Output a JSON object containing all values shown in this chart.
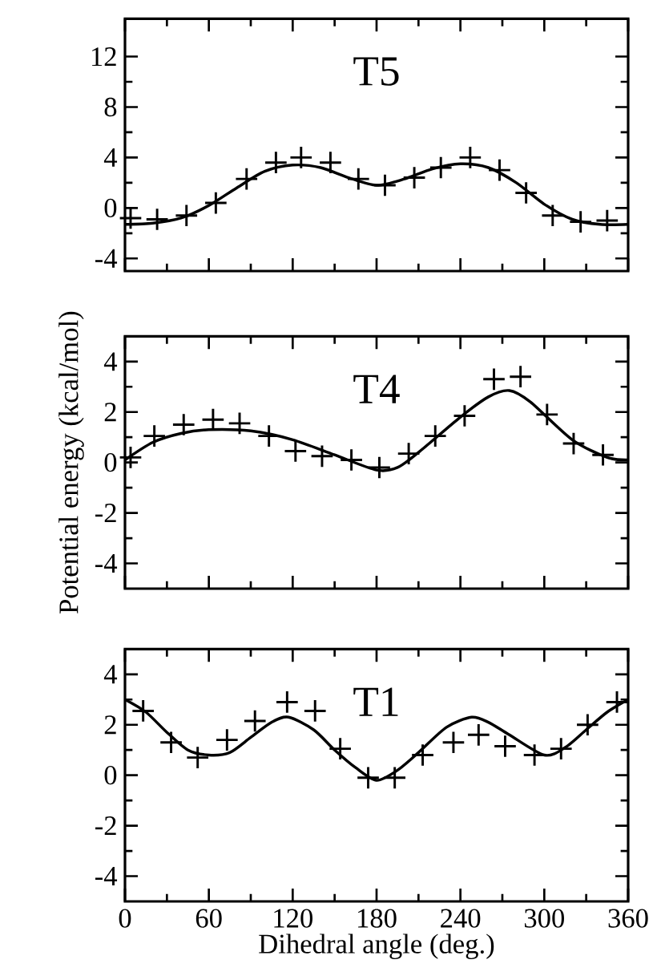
{
  "chart_data": [
    {
      "type": "line",
      "title": "T5",
      "xlim": [
        0,
        360
      ],
      "xticks": [
        0,
        60,
        120,
        180,
        240,
        300,
        360
      ],
      "ylim": [
        -5,
        15
      ],
      "yticks": [
        -4,
        0,
        4,
        8,
        12
      ],
      "tick_labels": "y",
      "series": [
        {
          "type": "scatter",
          "marker": "cross",
          "color": "#000000",
          "x": [
            4,
            23,
            44,
            65,
            87,
            108,
            126,
            147,
            167,
            186,
            207,
            226,
            247,
            268,
            287,
            306,
            326,
            345
          ],
          "values": [
            -0.8,
            -0.9,
            -0.6,
            0.4,
            2.3,
            3.6,
            4.0,
            3.6,
            2.3,
            1.8,
            2.4,
            3.2,
            4.0,
            3.0,
            1.2,
            -0.6,
            -1.1,
            -1.0
          ]
        },
        {
          "marker": "none",
          "color": "#000000",
          "x": [
            0,
            20,
            40,
            60,
            80,
            100,
            120,
            140,
            160,
            180,
            200,
            220,
            240,
            260,
            280,
            300,
            320,
            340,
            360
          ],
          "values": [
            -1.3,
            -1.2,
            -0.8,
            0.2,
            1.6,
            2.9,
            3.4,
            3.2,
            2.4,
            1.8,
            2.3,
            3.1,
            3.5,
            3.2,
            2.0,
            0.3,
            -0.9,
            -1.3,
            -1.3
          ]
        }
      ]
    },
    {
      "type": "line",
      "title": "T4",
      "ylabel": "Potential energy (kcal/mol)",
      "xlim": [
        0,
        360
      ],
      "xticks": [
        0,
        60,
        120,
        180,
        240,
        300,
        360
      ],
      "ylim": [
        -5,
        5
      ],
      "yticks": [
        -4,
        -2,
        0,
        2,
        4
      ],
      "tick_labels": "y",
      "series": [
        {
          "type": "scatter",
          "marker": "cross",
          "color": "#000000",
          "x": [
            4,
            21,
            42,
            63,
            82,
            103,
            122,
            141,
            162,
            182,
            203,
            222,
            243,
            264,
            283,
            302,
            321,
            342
          ],
          "values": [
            0.2,
            1.05,
            1.5,
            1.7,
            1.55,
            1.05,
            0.45,
            0.25,
            0.1,
            -0.2,
            0.35,
            1.05,
            1.85,
            3.3,
            3.4,
            1.9,
            0.75,
            0.3
          ]
        },
        {
          "marker": "none",
          "color": "#000000",
          "x": [
            0,
            20,
            40,
            60,
            90,
            120,
            150,
            180,
            195,
            210,
            240,
            260,
            275,
            290,
            320,
            345,
            360
          ],
          "values": [
            0.1,
            0.8,
            1.15,
            1.3,
            1.25,
            0.9,
            0.3,
            -0.3,
            -0.2,
            0.4,
            1.8,
            2.6,
            2.85,
            2.4,
            0.9,
            0.2,
            0.1
          ]
        }
      ]
    },
    {
      "type": "line",
      "title": "T1",
      "xlabel": "Dihedral angle (deg.)",
      "xlim": [
        0,
        360
      ],
      "xticks": [
        0,
        60,
        120,
        180,
        240,
        300,
        360
      ],
      "ylim": [
        -5,
        5
      ],
      "yticks": [
        -4,
        -2,
        0,
        2,
        4
      ],
      "series": [
        {
          "type": "scatter",
          "marker": "cross",
          "color": "#000000",
          "x": [
            13,
            33,
            52,
            73,
            93,
            116,
            136,
            154,
            174,
            193,
            213,
            235,
            253,
            272,
            293,
            312,
            331,
            352
          ],
          "values": [
            2.55,
            1.3,
            0.7,
            1.4,
            2.15,
            2.9,
            2.55,
            1.05,
            -0.1,
            -0.1,
            0.8,
            1.3,
            1.6,
            1.15,
            0.8,
            1.05,
            2.0,
            2.9
          ]
        },
        {
          "marker": "none",
          "color": "#000000",
          "x": [
            0,
            15,
            30,
            45,
            60,
            75,
            90,
            105,
            117,
            135,
            150,
            165,
            180,
            195,
            210,
            230,
            248,
            260,
            275,
            300,
            315,
            330,
            345,
            360
          ],
          "values": [
            3.0,
            2.5,
            1.7,
            1.0,
            0.8,
            0.9,
            1.5,
            2.1,
            2.3,
            1.8,
            1.0,
            0.3,
            -0.2,
            0.2,
            0.9,
            1.9,
            2.3,
            2.1,
            1.6,
            0.8,
            1.1,
            1.8,
            2.5,
            3.0
          ]
        }
      ]
    }
  ]
}
